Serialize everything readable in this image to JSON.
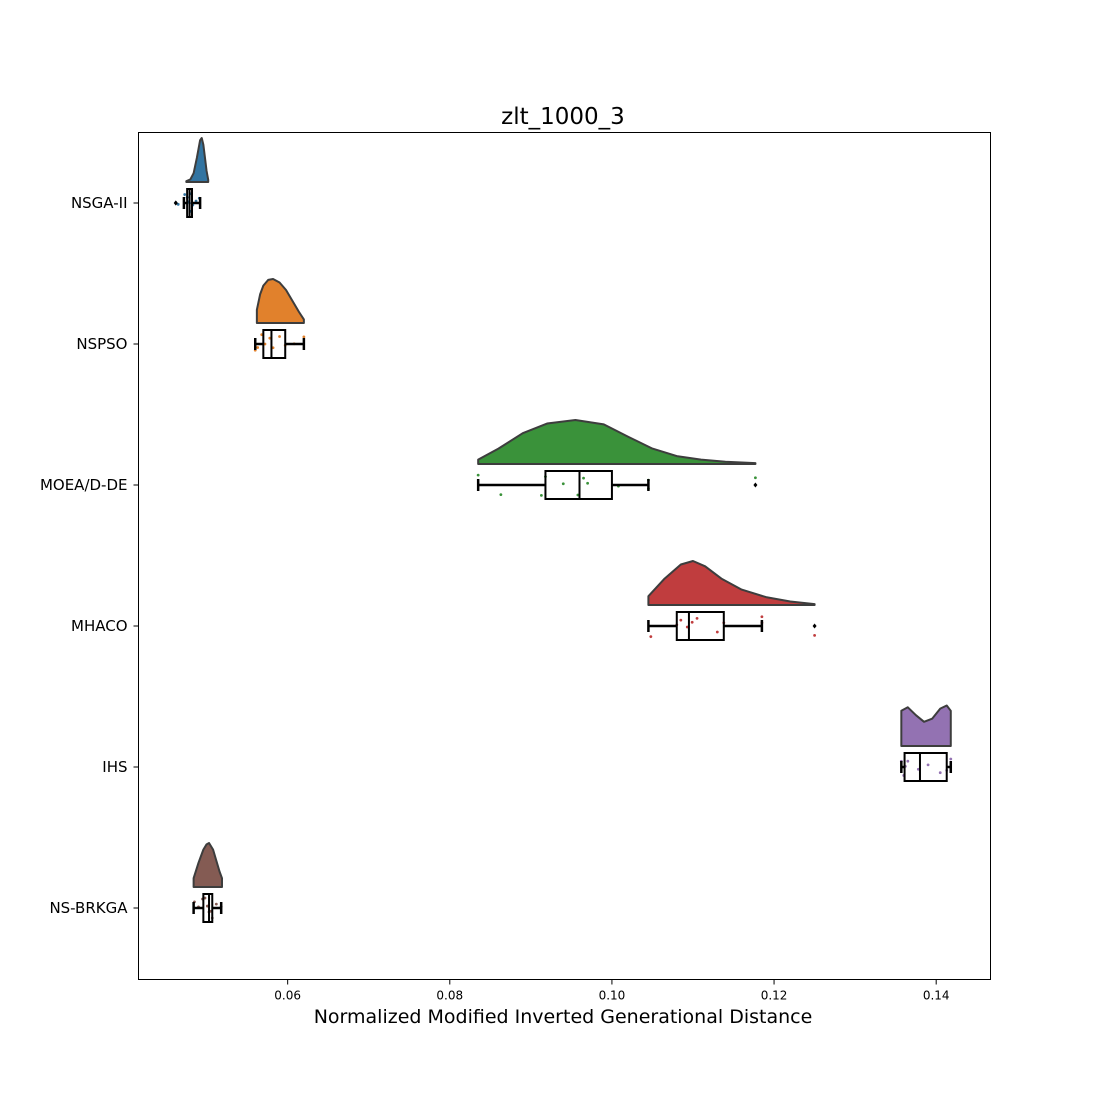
{
  "chart_data": {
    "type": "raincloud",
    "title": "zlt_1000_3",
    "xlabel": "Normalized Modified Inverted Generational Distance",
    "ylabel": "",
    "xlim": [
      0.0416,
      0.1467
    ],
    "xticks": [
      0.06,
      0.08,
      0.1,
      0.12,
      0.14
    ],
    "xtick_labels": [
      "0.06",
      "0.08",
      "0.10",
      "0.12",
      "0.14"
    ],
    "grid": false,
    "categories": [
      "NSGA-II",
      "NSPSO",
      "MOEA/D-DE",
      "MHACO",
      "IHS",
      "NS-BRKGA"
    ],
    "series": [
      {
        "name": "NSGA-II",
        "color": "#3274a1",
        "whisker_low": 0.0472,
        "q1": 0.0476,
        "median": 0.0479,
        "q3": 0.0482,
        "whisker_high": 0.0492,
        "outliers": [
          0.0462,
          0.0462
        ],
        "points": [
          0.0462,
          0.0465,
          0.0473,
          0.0476,
          0.0478,
          0.0479,
          0.048,
          0.0481,
          0.0483,
          0.0487,
          0.0491
        ],
        "kde": [
          [
            0.0475,
            0.02
          ],
          [
            0.048,
            0.06
          ],
          [
            0.0484,
            0.2
          ],
          [
            0.0488,
            0.55
          ],
          [
            0.049,
            0.75
          ],
          [
            0.0492,
            0.95
          ],
          [
            0.0494,
            1.0
          ],
          [
            0.0496,
            0.85
          ],
          [
            0.0498,
            0.55
          ],
          [
            0.05,
            0.25
          ],
          [
            0.0502,
            0.05
          ]
        ]
      },
      {
        "name": "NSPSO",
        "color": "#e1812c",
        "whisker_low": 0.056,
        "q1": 0.057,
        "median": 0.058,
        "q3": 0.0597,
        "whisker_high": 0.062,
        "outliers": [],
        "points": [
          0.056,
          0.0563,
          0.0568,
          0.0572,
          0.0578,
          0.0582,
          0.059,
          0.0597,
          0.0608,
          0.062
        ],
        "kde": [
          [
            0.0562,
            0.3
          ],
          [
            0.0566,
            0.65
          ],
          [
            0.057,
            0.85
          ],
          [
            0.0576,
            0.98
          ],
          [
            0.0582,
            1.0
          ],
          [
            0.059,
            0.92
          ],
          [
            0.0598,
            0.75
          ],
          [
            0.0606,
            0.5
          ],
          [
            0.0614,
            0.25
          ],
          [
            0.062,
            0.08
          ]
        ]
      },
      {
        "name": "MOEA/D-DE",
        "color": "#3a923a",
        "whisker_low": 0.0835,
        "q1": 0.0918,
        "median": 0.096,
        "q3": 0.1,
        "whisker_high": 0.1045,
        "outliers": [
          0.1177
        ],
        "points": [
          0.0835,
          0.0863,
          0.0913,
          0.0918,
          0.094,
          0.0958,
          0.0965,
          0.097,
          0.1008,
          0.1045,
          0.1045,
          0.1177
        ],
        "kde": [
          [
            0.0835,
            0.1
          ],
          [
            0.086,
            0.35
          ],
          [
            0.089,
            0.7
          ],
          [
            0.092,
            0.92
          ],
          [
            0.0955,
            1.0
          ],
          [
            0.099,
            0.9
          ],
          [
            0.102,
            0.62
          ],
          [
            0.105,
            0.35
          ],
          [
            0.108,
            0.18
          ],
          [
            0.111,
            0.1
          ],
          [
            0.114,
            0.05
          ],
          [
            0.1177,
            0.02
          ]
        ]
      },
      {
        "name": "MHACO",
        "color": "#c03d3e",
        "whisker_low": 0.1045,
        "q1": 0.108,
        "median": 0.1095,
        "q3": 0.1138,
        "whisker_high": 0.1185,
        "outliers": [
          0.125
        ],
        "points": [
          0.1048,
          0.108,
          0.1085,
          0.1093,
          0.1099,
          0.1105,
          0.113,
          0.1138,
          0.1185,
          0.1185,
          0.125
        ],
        "kde": [
          [
            0.1045,
            0.2
          ],
          [
            0.1065,
            0.6
          ],
          [
            0.1085,
            0.92
          ],
          [
            0.11,
            1.0
          ],
          [
            0.1115,
            0.88
          ],
          [
            0.1135,
            0.6
          ],
          [
            0.116,
            0.35
          ],
          [
            0.119,
            0.18
          ],
          [
            0.122,
            0.08
          ],
          [
            0.125,
            0.02
          ]
        ]
      },
      {
        "name": "IHS",
        "color": "#9372b2",
        "whisker_low": 0.1357,
        "q1": 0.1361,
        "median": 0.138,
        "q3": 0.1413,
        "whisker_high": 0.1418,
        "outliers": [],
        "points": [
          0.1357,
          0.136,
          0.1362,
          0.1365,
          0.1378,
          0.139,
          0.1405,
          0.1413,
          0.1418
        ],
        "kde": [
          [
            0.1357,
            0.8
          ],
          [
            0.1365,
            0.88
          ],
          [
            0.1375,
            0.7
          ],
          [
            0.1385,
            0.55
          ],
          [
            0.1395,
            0.62
          ],
          [
            0.1405,
            0.85
          ],
          [
            0.1413,
            0.92
          ],
          [
            0.1418,
            0.8
          ]
        ]
      },
      {
        "name": "NS-BRKGA",
        "color": "#845b53",
        "whisker_low": 0.0484,
        "q1": 0.0496,
        "median": 0.0503,
        "q3": 0.0507,
        "whisker_high": 0.0518,
        "outliers": [],
        "points": [
          0.0485,
          0.049,
          0.0495,
          0.0498,
          0.0501,
          0.0503,
          0.0505,
          0.0507,
          0.0512,
          0.0518
        ],
        "kde": [
          [
            0.0484,
            0.2
          ],
          [
            0.049,
            0.55
          ],
          [
            0.0496,
            0.85
          ],
          [
            0.05,
            0.97
          ],
          [
            0.0503,
            1.0
          ],
          [
            0.0508,
            0.85
          ],
          [
            0.0512,
            0.6
          ],
          [
            0.0516,
            0.35
          ],
          [
            0.0519,
            0.2
          ]
        ]
      }
    ]
  }
}
